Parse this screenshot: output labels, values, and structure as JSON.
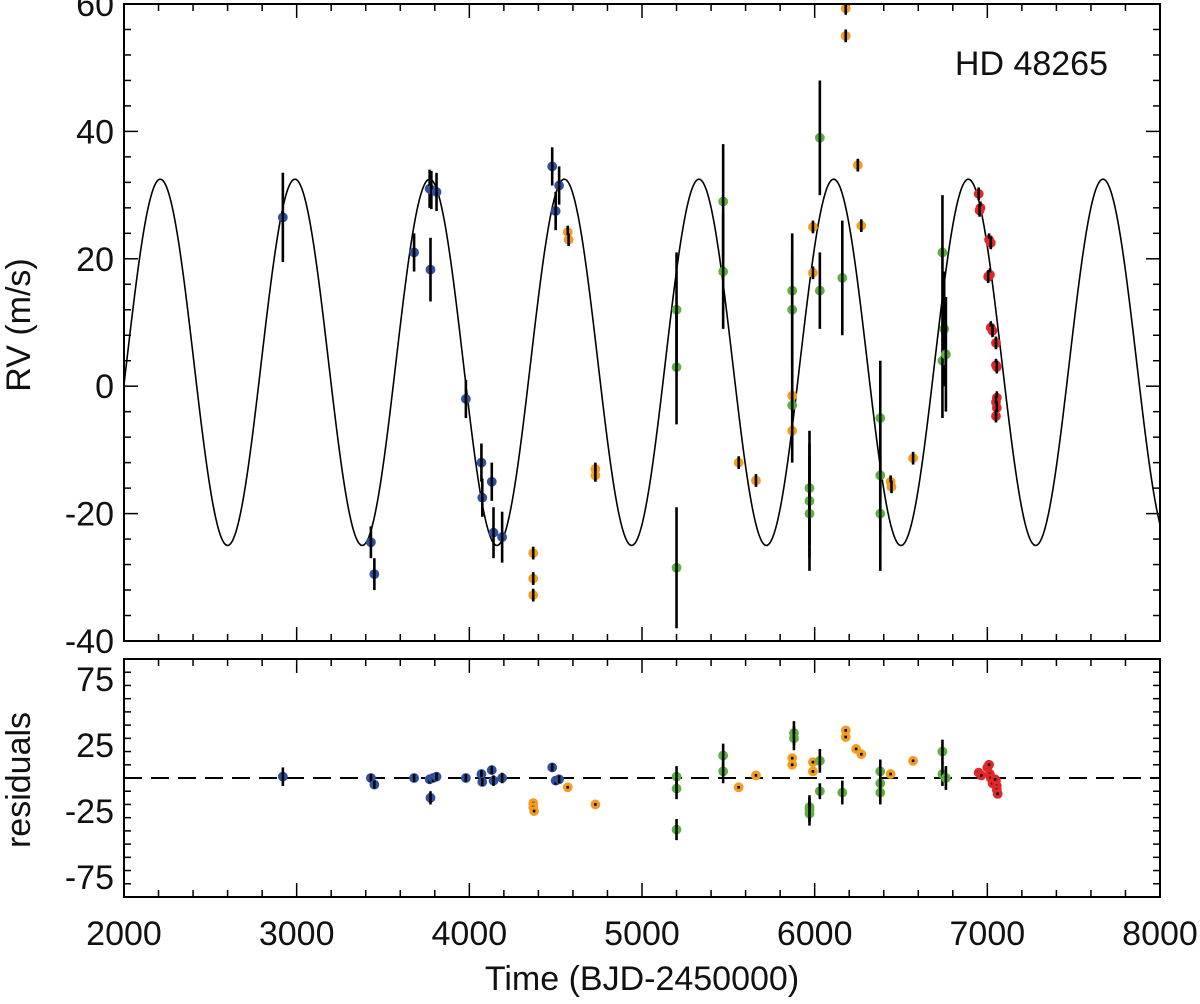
{
  "chart_data": [
    {
      "type": "scatter",
      "panel": "rv",
      "annotation": "HD 48265",
      "xlabel": "",
      "ylabel": "RV (m/s)",
      "xlim": [
        2000,
        8000
      ],
      "ylim": [
        -40,
        60
      ],
      "yticks": [
        -40,
        -20,
        0,
        20,
        40,
        60
      ],
      "ytick_labels": [
        "-40",
        "-20",
        "0",
        "20",
        "40",
        "60"
      ],
      "xticks": [
        2000,
        3000,
        4000,
        5000,
        6000,
        7000,
        8000
      ],
      "xtick_labels": [
        "",
        "",
        "",
        "",
        "",
        "",
        ""
      ],
      "model": {
        "type": "sinusoid",
        "period": 780,
        "amplitude": 28.75,
        "offset": 3.75,
        "max_at": 2210
      },
      "series": [
        {
          "color": "#3050a0",
          "points": [
            {
              "x": 2920,
              "y": 26.5,
              "err": 7
            },
            {
              "x": 3430,
              "y": -24.5,
              "err": 2.5
            },
            {
              "x": 3450,
              "y": -29.5,
              "err": 2.5
            },
            {
              "x": 3680,
              "y": 21,
              "err": 3
            },
            {
              "x": 3770,
              "y": 31,
              "err": 3
            },
            {
              "x": 3775,
              "y": 18.3,
              "err": 5
            },
            {
              "x": 3780,
              "y": 30.8,
              "err": 3
            },
            {
              "x": 3810,
              "y": 30.5,
              "err": 3
            },
            {
              "x": 3980,
              "y": -2,
              "err": 3
            },
            {
              "x": 4070,
              "y": -12,
              "err": 3
            },
            {
              "x": 4075,
              "y": -17.5,
              "err": 3
            },
            {
              "x": 4130,
              "y": -15,
              "err": 3
            },
            {
              "x": 4140,
              "y": -23,
              "err": 4
            },
            {
              "x": 4190,
              "y": -23.7,
              "err": 4
            },
            {
              "x": 4480,
              "y": 34.5,
              "err": 3
            },
            {
              "x": 4500,
              "y": 27.5,
              "err": 3
            },
            {
              "x": 4520,
              "y": 31.5,
              "err": 3
            }
          ]
        },
        {
          "color": "#f39c1e",
          "points": [
            {
              "x": 4370,
              "y": -26.2,
              "err": 1
            },
            {
              "x": 4370,
              "y": -30.2,
              "err": 1
            },
            {
              "x": 4370,
              "y": -32.8,
              "err": 1
            },
            {
              "x": 4570,
              "y": 24.2,
              "err": 1
            },
            {
              "x": 4575,
              "y": 23,
              "err": 1
            },
            {
              "x": 4730,
              "y": -13,
              "err": 1
            },
            {
              "x": 4730,
              "y": -14,
              "err": 1
            },
            {
              "x": 5560,
              "y": -12,
              "err": 1
            },
            {
              "x": 5660,
              "y": -14.8,
              "err": 1
            },
            {
              "x": 5870,
              "y": -1.5,
              "err": 1
            },
            {
              "x": 5870,
              "y": -7,
              "err": 1
            },
            {
              "x": 5990,
              "y": 25,
              "err": 1
            },
            {
              "x": 5990,
              "y": 17.8,
              "err": 1
            },
            {
              "x": 6180,
              "y": 59.3,
              "err": 1
            },
            {
              "x": 6180,
              "y": 55,
              "err": 1
            },
            {
              "x": 6250,
              "y": 34.7,
              "err": 1
            },
            {
              "x": 6270,
              "y": 25.2,
              "err": 1
            },
            {
              "x": 6440,
              "y": -15,
              "err": 1
            },
            {
              "x": 6445,
              "y": -15.8,
              "err": 1
            },
            {
              "x": 6570,
              "y": -11.3,
              "err": 1
            }
          ]
        },
        {
          "color": "#5cb13a",
          "points": [
            {
              "x": 5200,
              "y": 12,
              "err": 9
            },
            {
              "x": 5200,
              "y": 3,
              "err": 9
            },
            {
              "x": 5200,
              "y": -28.5,
              "err": 9.5
            },
            {
              "x": 5470,
              "y": 29,
              "err": 9
            },
            {
              "x": 5470,
              "y": 18,
              "err": 9
            },
            {
              "x": 5870,
              "y": 15,
              "err": 9
            },
            {
              "x": 5870,
              "y": 12,
              "err": 9
            },
            {
              "x": 5870,
              "y": -3,
              "err": 9
            },
            {
              "x": 5970,
              "y": -16,
              "err": 9
            },
            {
              "x": 5970,
              "y": -18,
              "err": 9
            },
            {
              "x": 5970,
              "y": -20,
              "err": 9
            },
            {
              "x": 6030,
              "y": 39,
              "err": 9
            },
            {
              "x": 6030,
              "y": 15,
              "err": 6
            },
            {
              "x": 6160,
              "y": 17,
              "err": 9
            },
            {
              "x": 6380,
              "y": -5,
              "err": 9
            },
            {
              "x": 6380,
              "y": -14,
              "err": 9
            },
            {
              "x": 6380,
              "y": -20,
              "err": 9
            },
            {
              "x": 6740,
              "y": 21,
              "err": 9
            },
            {
              "x": 6750,
              "y": 9,
              "err": 9
            },
            {
              "x": 6740,
              "y": 4,
              "err": 9
            },
            {
              "x": 6760,
              "y": 5,
              "err": 9
            }
          ]
        },
        {
          "color": "#e02828",
          "points": [
            {
              "x": 6950,
              "y": 30.2,
              "err": 1
            },
            {
              "x": 6960,
              "y": 28,
              "err": 1
            },
            {
              "x": 6955,
              "y": 27.6,
              "err": 1
            },
            {
              "x": 7010,
              "y": 23,
              "err": 1
            },
            {
              "x": 7020,
              "y": 22.5,
              "err": 1
            },
            {
              "x": 7015,
              "y": 17.5,
              "err": 1
            },
            {
              "x": 7005,
              "y": 17.2,
              "err": 1
            },
            {
              "x": 7020,
              "y": 9.2,
              "err": 1
            },
            {
              "x": 7030,
              "y": 8.7,
              "err": 1
            },
            {
              "x": 7050,
              "y": 6.8,
              "err": 1
            },
            {
              "x": 7050,
              "y": 3.3,
              "err": 1
            },
            {
              "x": 7055,
              "y": 3,
              "err": 1
            },
            {
              "x": 7055,
              "y": -1.8,
              "err": 1
            },
            {
              "x": 7050,
              "y": -2.5,
              "err": 1
            },
            {
              "x": 7055,
              "y": -3.4,
              "err": 1
            },
            {
              "x": 7050,
              "y": -4.7,
              "err": 1
            }
          ]
        }
      ]
    },
    {
      "type": "scatter",
      "panel": "residuals",
      "xlabel": "Time (BJD-2450000)",
      "ylabel": "residuals",
      "xlim": [
        2000,
        8000
      ],
      "ylim": [
        -90,
        90
      ],
      "yticks": [
        -75,
        -25,
        25,
        75
      ],
      "ytick_labels": [
        "-75",
        "-25",
        "25",
        "75"
      ],
      "xticks": [
        2000,
        3000,
        4000,
        5000,
        6000,
        7000,
        8000
      ],
      "xtick_labels": [
        "2000",
        "3000",
        "4000",
        "5000",
        "6000",
        "7000",
        "8000"
      ],
      "reference_line": {
        "y": 0,
        "style": "dashed"
      },
      "series": [
        {
          "color": "#3050a0",
          "points": [
            {
              "x": 2920,
              "y": 1,
              "err": 7
            },
            {
              "x": 3430,
              "y": 0,
              "err": 3
            },
            {
              "x": 3450,
              "y": -5,
              "err": 3
            },
            {
              "x": 3680,
              "y": 0,
              "err": 3
            },
            {
              "x": 3770,
              "y": -1,
              "err": 3
            },
            {
              "x": 3775,
              "y": -15,
              "err": 5
            },
            {
              "x": 3790,
              "y": 0,
              "err": 3
            },
            {
              "x": 3810,
              "y": 1,
              "err": 3
            },
            {
              "x": 3980,
              "y": 0,
              "err": 3
            },
            {
              "x": 4070,
              "y": 3,
              "err": 3
            },
            {
              "x": 4075,
              "y": -3,
              "err": 3
            },
            {
              "x": 4130,
              "y": 6,
              "err": 3
            },
            {
              "x": 4140,
              "y": -2,
              "err": 4
            },
            {
              "x": 4190,
              "y": 0,
              "err": 4
            },
            {
              "x": 4480,
              "y": 8,
              "err": 3
            },
            {
              "x": 4500,
              "y": -2,
              "err": 3
            },
            {
              "x": 4520,
              "y": -1,
              "err": 3
            }
          ]
        },
        {
          "color": "#f39c1e",
          "points": [
            {
              "x": 4370,
              "y": -19,
              "err": 1
            },
            {
              "x": 4370,
              "y": -22,
              "err": 1
            },
            {
              "x": 4375,
              "y": -25,
              "err": 1
            },
            {
              "x": 4570,
              "y": -7,
              "err": 1
            },
            {
              "x": 4730,
              "y": -20,
              "err": 1
            },
            {
              "x": 5560,
              "y": -7,
              "err": 1
            },
            {
              "x": 5660,
              "y": 2,
              "err": 1
            },
            {
              "x": 5870,
              "y": 15,
              "err": 1
            },
            {
              "x": 5870,
              "y": 10,
              "err": 1
            },
            {
              "x": 5990,
              "y": 12,
              "err": 1
            },
            {
              "x": 5990,
              "y": 5,
              "err": 1
            },
            {
              "x": 6180,
              "y": 36,
              "err": 1
            },
            {
              "x": 6180,
              "y": 31,
              "err": 1
            },
            {
              "x": 6240,
              "y": 22,
              "err": 1
            },
            {
              "x": 6270,
              "y": 18,
              "err": 1
            },
            {
              "x": 6440,
              "y": 3,
              "err": 1
            },
            {
              "x": 6570,
              "y": 13,
              "err": 1
            }
          ]
        },
        {
          "color": "#5cb13a",
          "points": [
            {
              "x": 5200,
              "y": 1,
              "err": 8
            },
            {
              "x": 5200,
              "y": -8,
              "err": 8
            },
            {
              "x": 5200,
              "y": -39,
              "err": 8
            },
            {
              "x": 5470,
              "y": 17,
              "err": 9
            },
            {
              "x": 5470,
              "y": 5,
              "err": 9
            },
            {
              "x": 5880,
              "y": 34,
              "err": 9
            },
            {
              "x": 5880,
              "y": 30,
              "err": 9
            },
            {
              "x": 5970,
              "y": -22,
              "err": 9
            },
            {
              "x": 5970,
              "y": -24,
              "err": 9
            },
            {
              "x": 5970,
              "y": -27,
              "err": 9
            },
            {
              "x": 6030,
              "y": 13,
              "err": 9
            },
            {
              "x": 6030,
              "y": -10,
              "err": 6
            },
            {
              "x": 6160,
              "y": -11,
              "err": 9
            },
            {
              "x": 6380,
              "y": 5,
              "err": 9
            },
            {
              "x": 6380,
              "y": -4,
              "err": 9
            },
            {
              "x": 6380,
              "y": -11,
              "err": 9
            },
            {
              "x": 6740,
              "y": 20,
              "err": 9
            },
            {
              "x": 6740,
              "y": 3,
              "err": 9
            },
            {
              "x": 6760,
              "y": 0,
              "err": 9
            }
          ]
        },
        {
          "color": "#e02828",
          "points": [
            {
              "x": 6950,
              "y": 4,
              "err": 1
            },
            {
              "x": 6965,
              "y": 2,
              "err": 1
            },
            {
              "x": 7000,
              "y": 8,
              "err": 1
            },
            {
              "x": 7010,
              "y": 10,
              "err": 1
            },
            {
              "x": 7015,
              "y": 3,
              "err": 1
            },
            {
              "x": 7020,
              "y": 0,
              "err": 1
            },
            {
              "x": 7030,
              "y": -4,
              "err": 1
            },
            {
              "x": 7050,
              "y": -2,
              "err": 1
            },
            {
              "x": 7055,
              "y": -6,
              "err": 1
            },
            {
              "x": 7055,
              "y": -9,
              "err": 1
            },
            {
              "x": 7060,
              "y": -12,
              "err": 1
            },
            {
              "x": 7045,
              "y": -1,
              "err": 1
            }
          ]
        }
      ]
    }
  ]
}
